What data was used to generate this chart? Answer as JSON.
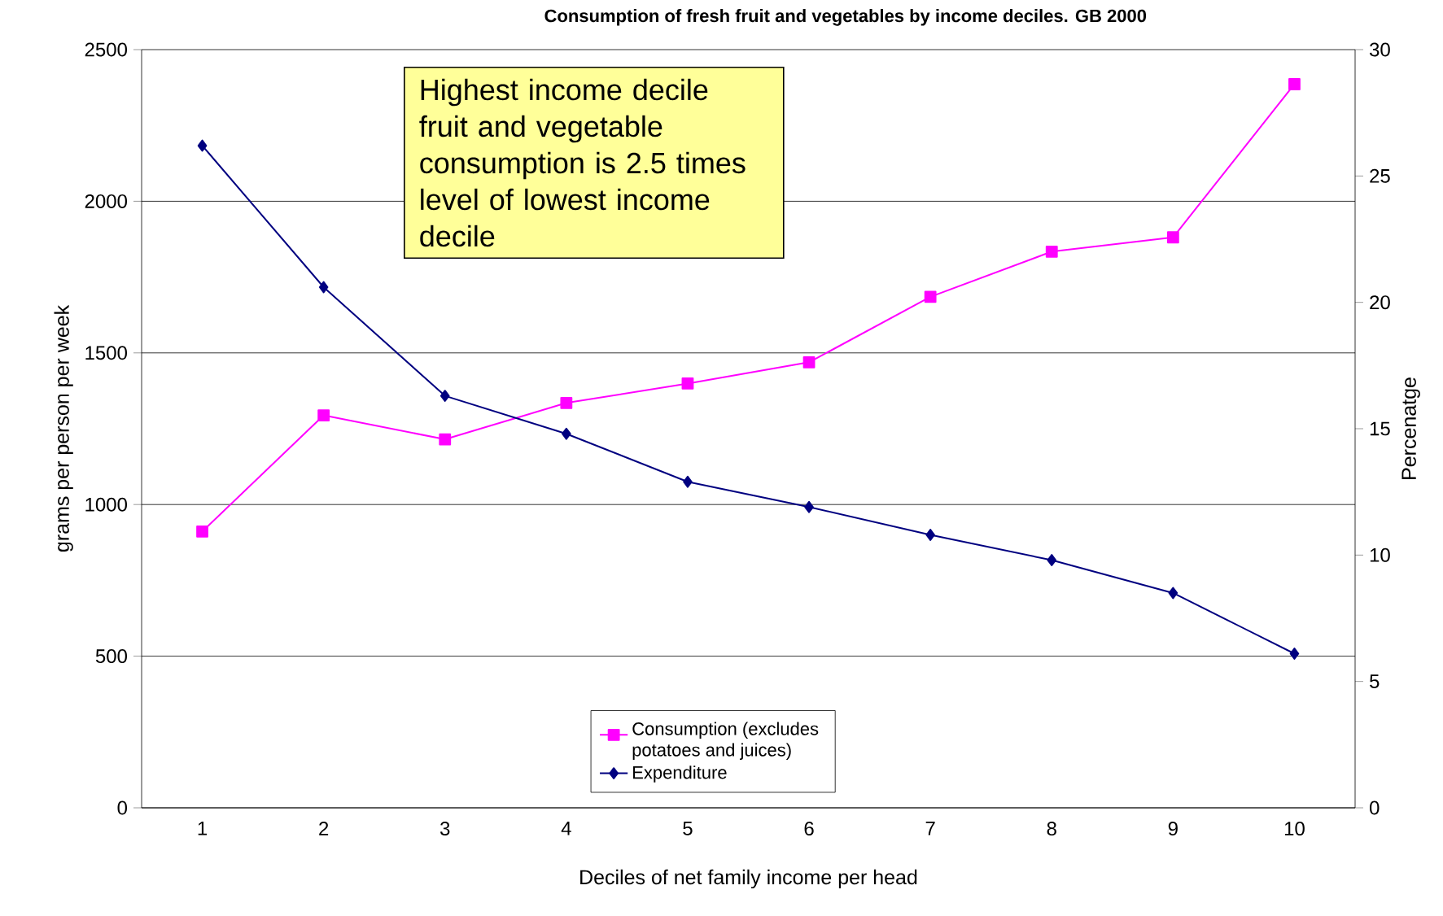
{
  "chart_data": {
    "type": "line",
    "title": "Consumption of fresh fruit and vegetables by income deciles. GB 2000",
    "xlabel": "Deciles of net family income per head",
    "ylabel": "grams per person per week",
    "y2label": "Percenatge",
    "categories": [
      "1",
      "2",
      "3",
      "4",
      "5",
      "6",
      "7",
      "8",
      "9",
      "10"
    ],
    "series": [
      {
        "name": "Consumption (excludes potatoes and juices)",
        "color": "#ff00ff",
        "marker": "square",
        "values": [
          911,
          1294,
          1215,
          1335,
          1399,
          1469,
          1685,
          1834,
          1881,
          2386
        ]
      },
      {
        "name": "Expenditure",
        "color": "#000080",
        "marker": "diamond",
        "axis": "y2",
        "values": [
          26.2,
          20.6,
          16.3,
          14.8,
          12.9,
          11.9,
          10.8,
          9.8,
          8.5,
          6.1
        ]
      }
    ],
    "ylim": [
      0,
      2500
    ],
    "yticks": [
      0,
      500,
      1000,
      1500,
      2000,
      2500
    ],
    "y2lim": [
      0,
      30
    ],
    "y2ticks": [
      0,
      5,
      10,
      15,
      20,
      25,
      30
    ],
    "grid": "y",
    "legend": "bottom",
    "annotations": [
      "Highest income decile fruit and vegetable consumption is 2.5 times level of lowest income decile"
    ]
  }
}
